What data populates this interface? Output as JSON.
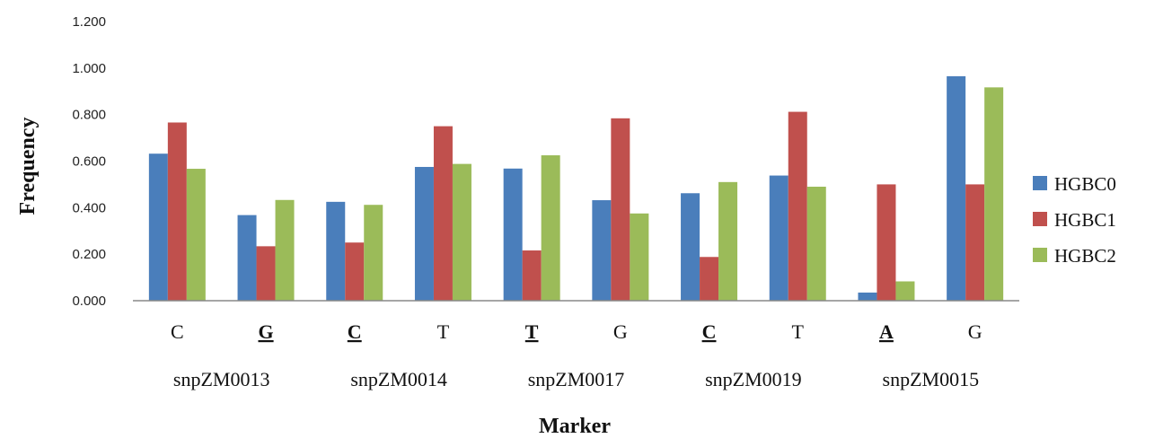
{
  "chart_data": {
    "type": "bar",
    "title": "",
    "xlabel": "Marker",
    "ylabel": "Frequency",
    "ylim": [
      0,
      1.2
    ],
    "yticks": [
      "0.000",
      "0.200",
      "0.400",
      "0.600",
      "0.800",
      "1.000",
      "1.200"
    ],
    "categories": [
      "C",
      "G",
      "C",
      "T",
      "T",
      "G",
      "C",
      "T",
      "A",
      "G"
    ],
    "highlighted_categories": [
      false,
      true,
      true,
      false,
      true,
      false,
      true,
      false,
      true,
      false
    ],
    "groups": [
      "snpZM0013",
      "snpZM0014",
      "snpZM0017",
      "snpZM0019",
      "snpZM0015"
    ],
    "grid": false,
    "legend_position": "right",
    "series": [
      {
        "name": "HGBC0",
        "color": "#4a7ebb",
        "values": [
          0.632,
          0.368,
          0.425,
          0.575,
          0.568,
          0.432,
          0.462,
          0.538,
          0.035,
          0.965
        ]
      },
      {
        "name": "HGBC1",
        "color": "#c0504d",
        "values": [
          0.766,
          0.234,
          0.25,
          0.75,
          0.216,
          0.784,
          0.188,
          0.812,
          0.5,
          0.5
        ]
      },
      {
        "name": "HGBC2",
        "color": "#9bbb59",
        "values": [
          0.567,
          0.433,
          0.412,
          0.588,
          0.625,
          0.375,
          0.51,
          0.49,
          0.083,
          0.917
        ]
      }
    ]
  }
}
